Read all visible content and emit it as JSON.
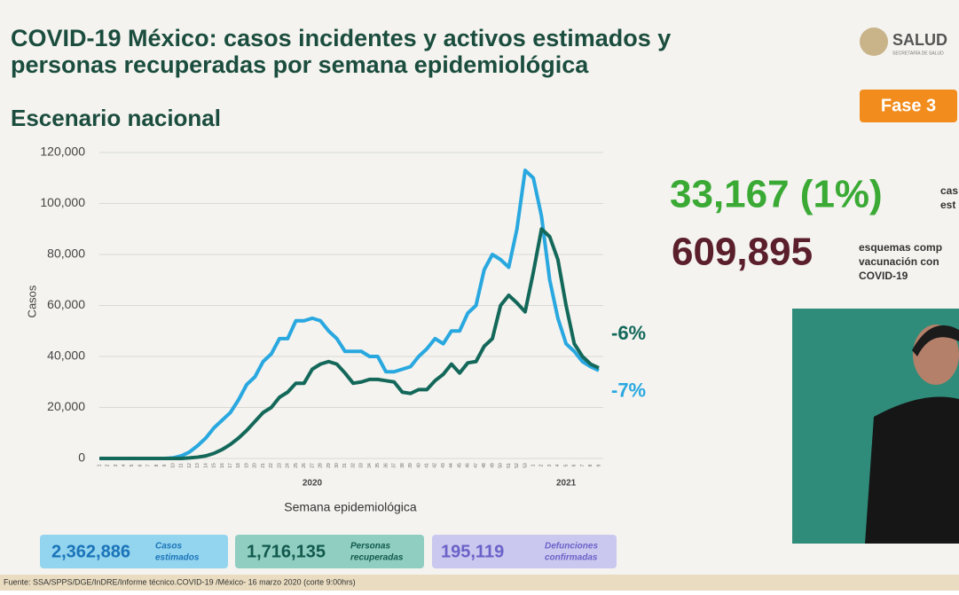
{
  "header": {
    "title_line1": "COVID-19 México: casos incidentes y activos estimados y",
    "title_line2": "personas recuperadas por semana epidemiológica",
    "subtitle": "Escenario nacional",
    "logo": "SALUD",
    "logo_sub": "SECRETARÍA DE SALUD",
    "badge": "Fase 3"
  },
  "highlights": {
    "value1": "33,167 (1%)",
    "text1_line1": "cas",
    "text1_line2": "est",
    "value2": "609,895",
    "text2_line1": "esquemas comp",
    "text2_line2": "vacunación con",
    "text2_line3": "COVID-19"
  },
  "chart_data": {
    "type": "line",
    "ylabel": "Casos",
    "xlabel": "Semana epidemiológica",
    "categories": [
      "1",
      "2",
      "3",
      "4",
      "5",
      "6",
      "7",
      "8",
      "9",
      "10",
      "11",
      "12",
      "13",
      "14",
      "15",
      "16",
      "17",
      "18",
      "19",
      "20",
      "21",
      "22",
      "23",
      "24",
      "25",
      "26",
      "27",
      "28",
      "29",
      "30",
      "31",
      "32",
      "33",
      "34",
      "35",
      "36",
      "37",
      "38",
      "39",
      "40",
      "41",
      "42",
      "43",
      "44",
      "45",
      "46",
      "47",
      "48",
      "49",
      "50",
      "51",
      "52",
      "53",
      "1",
      "2",
      "3",
      "4",
      "5",
      "6",
      "7",
      "8",
      "9"
    ],
    "x_groups": [
      "2020",
      "2021"
    ],
    "series": [
      {
        "color": "#29a8e0",
        "values": [
          0,
          0,
          0,
          0,
          0,
          0,
          0,
          0,
          0,
          200,
          1000,
          2500,
          5000,
          8000,
          12000,
          15000,
          18000,
          23000,
          29000,
          32000,
          38000,
          41000,
          47000,
          47000,
          54000,
          54000,
          55000,
          54000,
          50000,
          47000,
          42000,
          42000,
          42000,
          40000,
          40000,
          34000,
          34000,
          35000,
          36000,
          40000,
          43000,
          47000,
          45000,
          50000,
          50000,
          57000,
          60000,
          74000,
          80000,
          78000,
          75000,
          90000,
          113000,
          110000,
          95000,
          70000,
          55000,
          45000,
          42000,
          38000,
          36000,
          34500
        ]
      },
      {
        "color": "#13685a",
        "values": [
          0,
          0,
          0,
          0,
          0,
          0,
          0,
          0,
          0,
          0,
          0,
          200,
          500,
          1000,
          2000,
          3500,
          5500,
          8000,
          11000,
          14500,
          18000,
          20000,
          24000,
          26000,
          29500,
          29500,
          35000,
          37000,
          38000,
          37000,
          33500,
          29500,
          30000,
          31000,
          31000,
          30500,
          30000,
          26000,
          25500,
          27000,
          27000,
          30500,
          33000,
          37000,
          33500,
          37500,
          38000,
          44000,
          47000,
          60000,
          64000,
          61000,
          57500,
          73000,
          90000,
          87000,
          78000,
          60000,
          45000,
          40000,
          37000,
          35500
        ]
      }
    ],
    "end_labels": [
      "-7%",
      "-6%"
    ],
    "ylim": [
      0,
      120000
    ],
    "yticks": [
      0,
      {
        "value": 20000,
        "label": "20,000"
      },
      {
        "value": 40000,
        "label": "40,000"
      },
      {
        "value": 60000,
        "label": "60,000"
      },
      {
        "value": 80000,
        "label": "80,000"
      },
      {
        "value": 100000,
        "label": "100,000"
      },
      {
        "value": 120000,
        "label": "120,000"
      }
    ],
    "grid": true
  },
  "stats": [
    {
      "value": "2,362,886",
      "label_line1": "Casos",
      "label_line2": "estimados"
    },
    {
      "value": "1,716,135",
      "label_line1": "Personas",
      "label_line2": "recuperadas"
    },
    {
      "value": "195,119",
      "label_line1": "Defunciones",
      "label_line2": "confirmadas"
    }
  ],
  "footer": {
    "source": "Fuente: SSA/SPPS/DGE/InDRE/Informe técnico.COVID-19 /México- 16 marzo 2020 (corte 9:00hrs)"
  }
}
